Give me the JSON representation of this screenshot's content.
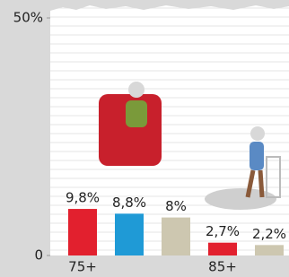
{
  "chart_data": {
    "type": "bar",
    "categories": [
      "75+",
      "85+"
    ],
    "series": [
      {
        "color": "#e2202e",
        "values": [
          9.8,
          2.7
        ],
        "value_labels": [
          "9,8%",
          "2,7%"
        ]
      },
      {
        "color": "#1f9ad6",
        "values": [
          8.8,
          null
        ],
        "value_labels": [
          "8,8%",
          null
        ]
      },
      {
        "color": "#cdc7b0",
        "values": [
          8,
          2.2
        ],
        "value_labels": [
          "8%",
          "2,2%"
        ]
      }
    ],
    "ylim": [
      0,
      50
    ],
    "yticks": [
      0,
      {
        "value": 50,
        "label": "50%"
      }
    ]
  }
}
